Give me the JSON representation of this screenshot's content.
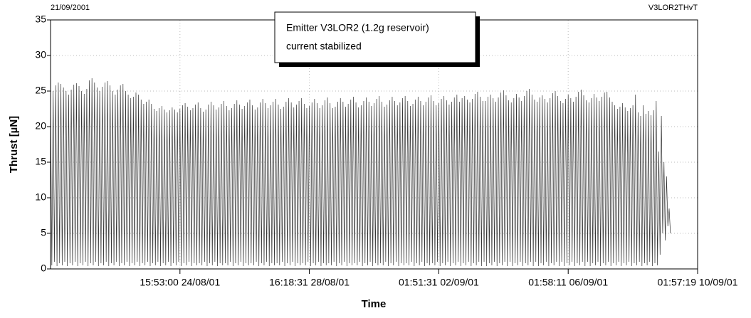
{
  "chart_data": {
    "type": "line",
    "date": "21/09/2001",
    "file_id": "V3LOR2THvT",
    "annotation": [
      "Emitter V3LOR2 (1.2g reservoir)",
      "current stabilized"
    ],
    "x_label": "Time",
    "y_label": "Thrust [µN]",
    "xlim": [
      0,
      500
    ],
    "xticks": [
      {
        "value": 100,
        "label": "15:53:00 24/08/01"
      },
      {
        "value": 200,
        "label": "16:18:31 28/08/01"
      },
      {
        "value": 300,
        "label": "01:51:31 02/09/01"
      },
      {
        "value": 400,
        "label": "01:58:11 06/09/01"
      },
      {
        "value": 500,
        "label": "01:57:19 10/09/01"
      }
    ],
    "ylim": [
      0,
      35
    ],
    "yticks": [
      0,
      5,
      10,
      15,
      20,
      25,
      30,
      35
    ],
    "grid": true,
    "series": [
      {
        "color": "#333333",
        "values": [
          24,
          0.5,
          25,
          1,
          25.8,
          0.4,
          26.2,
          0.8,
          26,
          0.5,
          25.5,
          1,
          25,
          0.4,
          24.5,
          0.8,
          25.2,
          0.5,
          25.9,
          1,
          26.1,
          0.4,
          25.7,
          0.8,
          25,
          0.5,
          24.6,
          1,
          25.3,
          0.4,
          26.5,
          0.8,
          26.8,
          0.5,
          26.2,
          1,
          25.5,
          0.4,
          25,
          0.8,
          25.6,
          0.5,
          26.2,
          1,
          26.4,
          0.4,
          25.8,
          0.8,
          25,
          0.5,
          24.5,
          1,
          25.2,
          0.4,
          25.8,
          0.8,
          26,
          0.5,
          25,
          1,
          24.5,
          0.4,
          24,
          0.8,
          24.2,
          0.5,
          24.8,
          1,
          24.5,
          0.4,
          23.8,
          0.8,
          23.2,
          0.5,
          23.5,
          1,
          23.8,
          0.4,
          23.2,
          0.8,
          22.5,
          0.5,
          22.2,
          1,
          22.6,
          0.4,
          22.9,
          0.8,
          22.4,
          0.5,
          22,
          1,
          22.3,
          0.4,
          22.7,
          0.8,
          22.4,
          0.5,
          22,
          1,
          22.5,
          0.4,
          23,
          0.8,
          23.3,
          0.5,
          22.8,
          1,
          22.3,
          0.4,
          22.6,
          0.8,
          23.1,
          0.5,
          23.4,
          0.8,
          22.6,
          0.5,
          22.1,
          1,
          22.4,
          0.4,
          23.1,
          0.8,
          23.5,
          0.5,
          23,
          1,
          22.4,
          0.4,
          22.7,
          0.8,
          23.2,
          0.5,
          23.6,
          0.8,
          22.9,
          0.5,
          22.3,
          1,
          22.6,
          0.4,
          23.2,
          0.8,
          23.7,
          0.5,
          23.1,
          1,
          22.5,
          0.4,
          22.9,
          0.8,
          23.4,
          0.5,
          23.8,
          0.8,
          23,
          0.5,
          22.4,
          1,
          22.7,
          0.4,
          23.4,
          0.8,
          23.9,
          0.5,
          23.3,
          1,
          22.6,
          0.4,
          23,
          0.8,
          23.5,
          0.5,
          23.9,
          0.8,
          23.1,
          0.5,
          22.5,
          1,
          22.8,
          0.4,
          23.5,
          0.8,
          24,
          0.5,
          23.4,
          1,
          22.7,
          0.4,
          23.1,
          0.8,
          23.6,
          0.5,
          24,
          0.8,
          23.2,
          0.5,
          22.6,
          1,
          22.9,
          0.4,
          23.4,
          0.8,
          23.9,
          0.5,
          23.3,
          1,
          22.6,
          0.4,
          23,
          0.8,
          23.7,
          0.5,
          24.1,
          0.8,
          23.3,
          0.5,
          22.6,
          1,
          22.8,
          0.4,
          23.5,
          0.8,
          24,
          0.5,
          23.5,
          1,
          22.8,
          0.4,
          23.2,
          0.8,
          23.8,
          0.5,
          24.2,
          0.8,
          23.4,
          0.5,
          22.7,
          1,
          23,
          0.4,
          23.6,
          0.8,
          24.1,
          0.5,
          23.5,
          1,
          22.9,
          0.4,
          23.3,
          0.8,
          23.9,
          0.5,
          24.3,
          0.8,
          23.5,
          0.5,
          22.8,
          1,
          23.1,
          0.4,
          23.7,
          0.8,
          24.2,
          0.5,
          23.6,
          1,
          23,
          0.4,
          23.4,
          0.8,
          24,
          0.5,
          24.3,
          0.8,
          23.6,
          0.5,
          22.9,
          1,
          23.2,
          0.4,
          23.8,
          0.8,
          24.2,
          0.5,
          23.6,
          1,
          23,
          0.4,
          23.5,
          0.8,
          24.1,
          0.5,
          24.4,
          0.8,
          23.6,
          0.5,
          23,
          1,
          23.3,
          0.4,
          23.9,
          0.8,
          24.3,
          0.5,
          23.7,
          1,
          23.1,
          0.4,
          23.5,
          0.8,
          24.1,
          0.5,
          24.5,
          1,
          23.5,
          0.4,
          24,
          0.8,
          24.3,
          0.5,
          23.8,
          1,
          23.4,
          0.4,
          23.9,
          0.8,
          24.6,
          0.5,
          24.9,
          1,
          24.2,
          0.4,
          23.6,
          1,
          23.6,
          0.4,
          24.2,
          0.8,
          24.5,
          0.5,
          24,
          1,
          23.5,
          0.4,
          24.1,
          0.8,
          24.8,
          0.5,
          25.1,
          1,
          24.4,
          0.4,
          23.7,
          1,
          23.4,
          0.4,
          24,
          0.8,
          24.6,
          0.5,
          24.1,
          1,
          23.6,
          0.4,
          24.3,
          0.8,
          25,
          0.5,
          25.3,
          1,
          24.5,
          0.4,
          23.8,
          1,
          23.5,
          0.4,
          24.1,
          0.8,
          24.4,
          0.5,
          23.9,
          1,
          23.4,
          0.4,
          24,
          0.8,
          24.7,
          0.5,
          25,
          1,
          24.3,
          0.4,
          23.6,
          1,
          23.3,
          0.4,
          23.9,
          0.8,
          24.5,
          0.5,
          24,
          1,
          23.5,
          0.4,
          24.2,
          0.8,
          24.9,
          0.5,
          25.2,
          1,
          24.4,
          0.4,
          23.7,
          1,
          23.4,
          0.4,
          24,
          0.8,
          24.6,
          0.5,
          24.1,
          1,
          23.6,
          0.4,
          24.2,
          0.8,
          24.8,
          0.5,
          24.9,
          1,
          24.1,
          0.4,
          23.5,
          0.8,
          23,
          0.5,
          22.5,
          1,
          22.8,
          0.4,
          23.3,
          0.8,
          22.7,
          0.5,
          22.2,
          1,
          22.6,
          0.4,
          23,
          0.8,
          24.5,
          0.5,
          22,
          1,
          21.5,
          0.4,
          23,
          0.8,
          21.8,
          0.5,
          22.2,
          1,
          21.6,
          0.4,
          22.3,
          0.8,
          23.6,
          0.5,
          16.5,
          2,
          21.5,
          5,
          15,
          4,
          13,
          6,
          8.5,
          5
        ]
      }
    ]
  }
}
